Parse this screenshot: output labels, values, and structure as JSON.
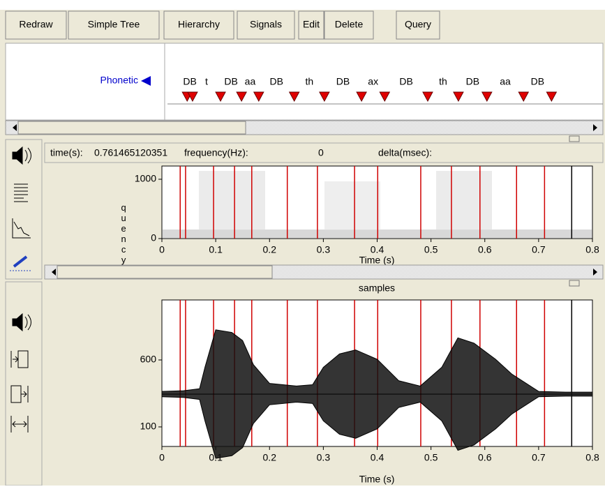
{
  "toolbar": {
    "buttons": [
      "Redraw",
      "Simple Tree",
      "Hierarchy",
      "Signals",
      "Edit",
      "Delete",
      "Query"
    ]
  },
  "label_pane": {
    "tier": "Phonetic",
    "labels": [
      "DB",
      "t",
      "DB",
      "aa",
      "DB",
      "th",
      "DB",
      "ax",
      "DB",
      "th",
      "DB",
      "aa",
      "DB"
    ],
    "boundaries": [
      0.034,
      0.044,
      0.096,
      0.135,
      0.167,
      0.233,
      0.289,
      0.358,
      0.401,
      0.481,
      0.538,
      0.591,
      0.659,
      0.711
    ]
  },
  "status": {
    "time_label": "time(s):",
    "time": 0.761465120351,
    "frequency_label": "frequency(Hz):",
    "frequency": 0,
    "delta_label": "delta(msec):"
  },
  "spectrogram": {
    "ylabel": "quency",
    "ylim": [
      0,
      1223
    ],
    "yticks": [
      0,
      1000
    ],
    "xlim": [
      0,
      0.8
    ],
    "xticks": [
      0,
      0.1,
      0.2,
      0.3,
      0.4,
      0.5,
      0.6,
      0.7,
      0.8
    ],
    "xlabel": "Time (s)"
  },
  "waveform": {
    "title": "samples",
    "ylim": [
      -46,
      1048
    ],
    "yticks": [
      100,
      600
    ],
    "xlim": [
      0,
      0.8
    ],
    "xticks": [
      0,
      0.1,
      0.2,
      0.3,
      0.4,
      0.5,
      0.6,
      0.7,
      0.8
    ],
    "xlabel": "Time (s)",
    "baseline": 345,
    "x": [
      0,
      0.04,
      0.07,
      0.08,
      0.1,
      0.13,
      0.15,
      0.17,
      0.2,
      0.25,
      0.28,
      0.3,
      0.33,
      0.36,
      0.4,
      0.44,
      0.48,
      0.52,
      0.55,
      0.58,
      0.62,
      0.65,
      0.7,
      0.75,
      0.8
    ],
    "amplitude": [
      20,
      25,
      40,
      200,
      480,
      460,
      400,
      220,
      80,
      60,
      70,
      200,
      300,
      330,
      260,
      100,
      60,
      200,
      420,
      380,
      260,
      150,
      20,
      15,
      15
    ]
  }
}
